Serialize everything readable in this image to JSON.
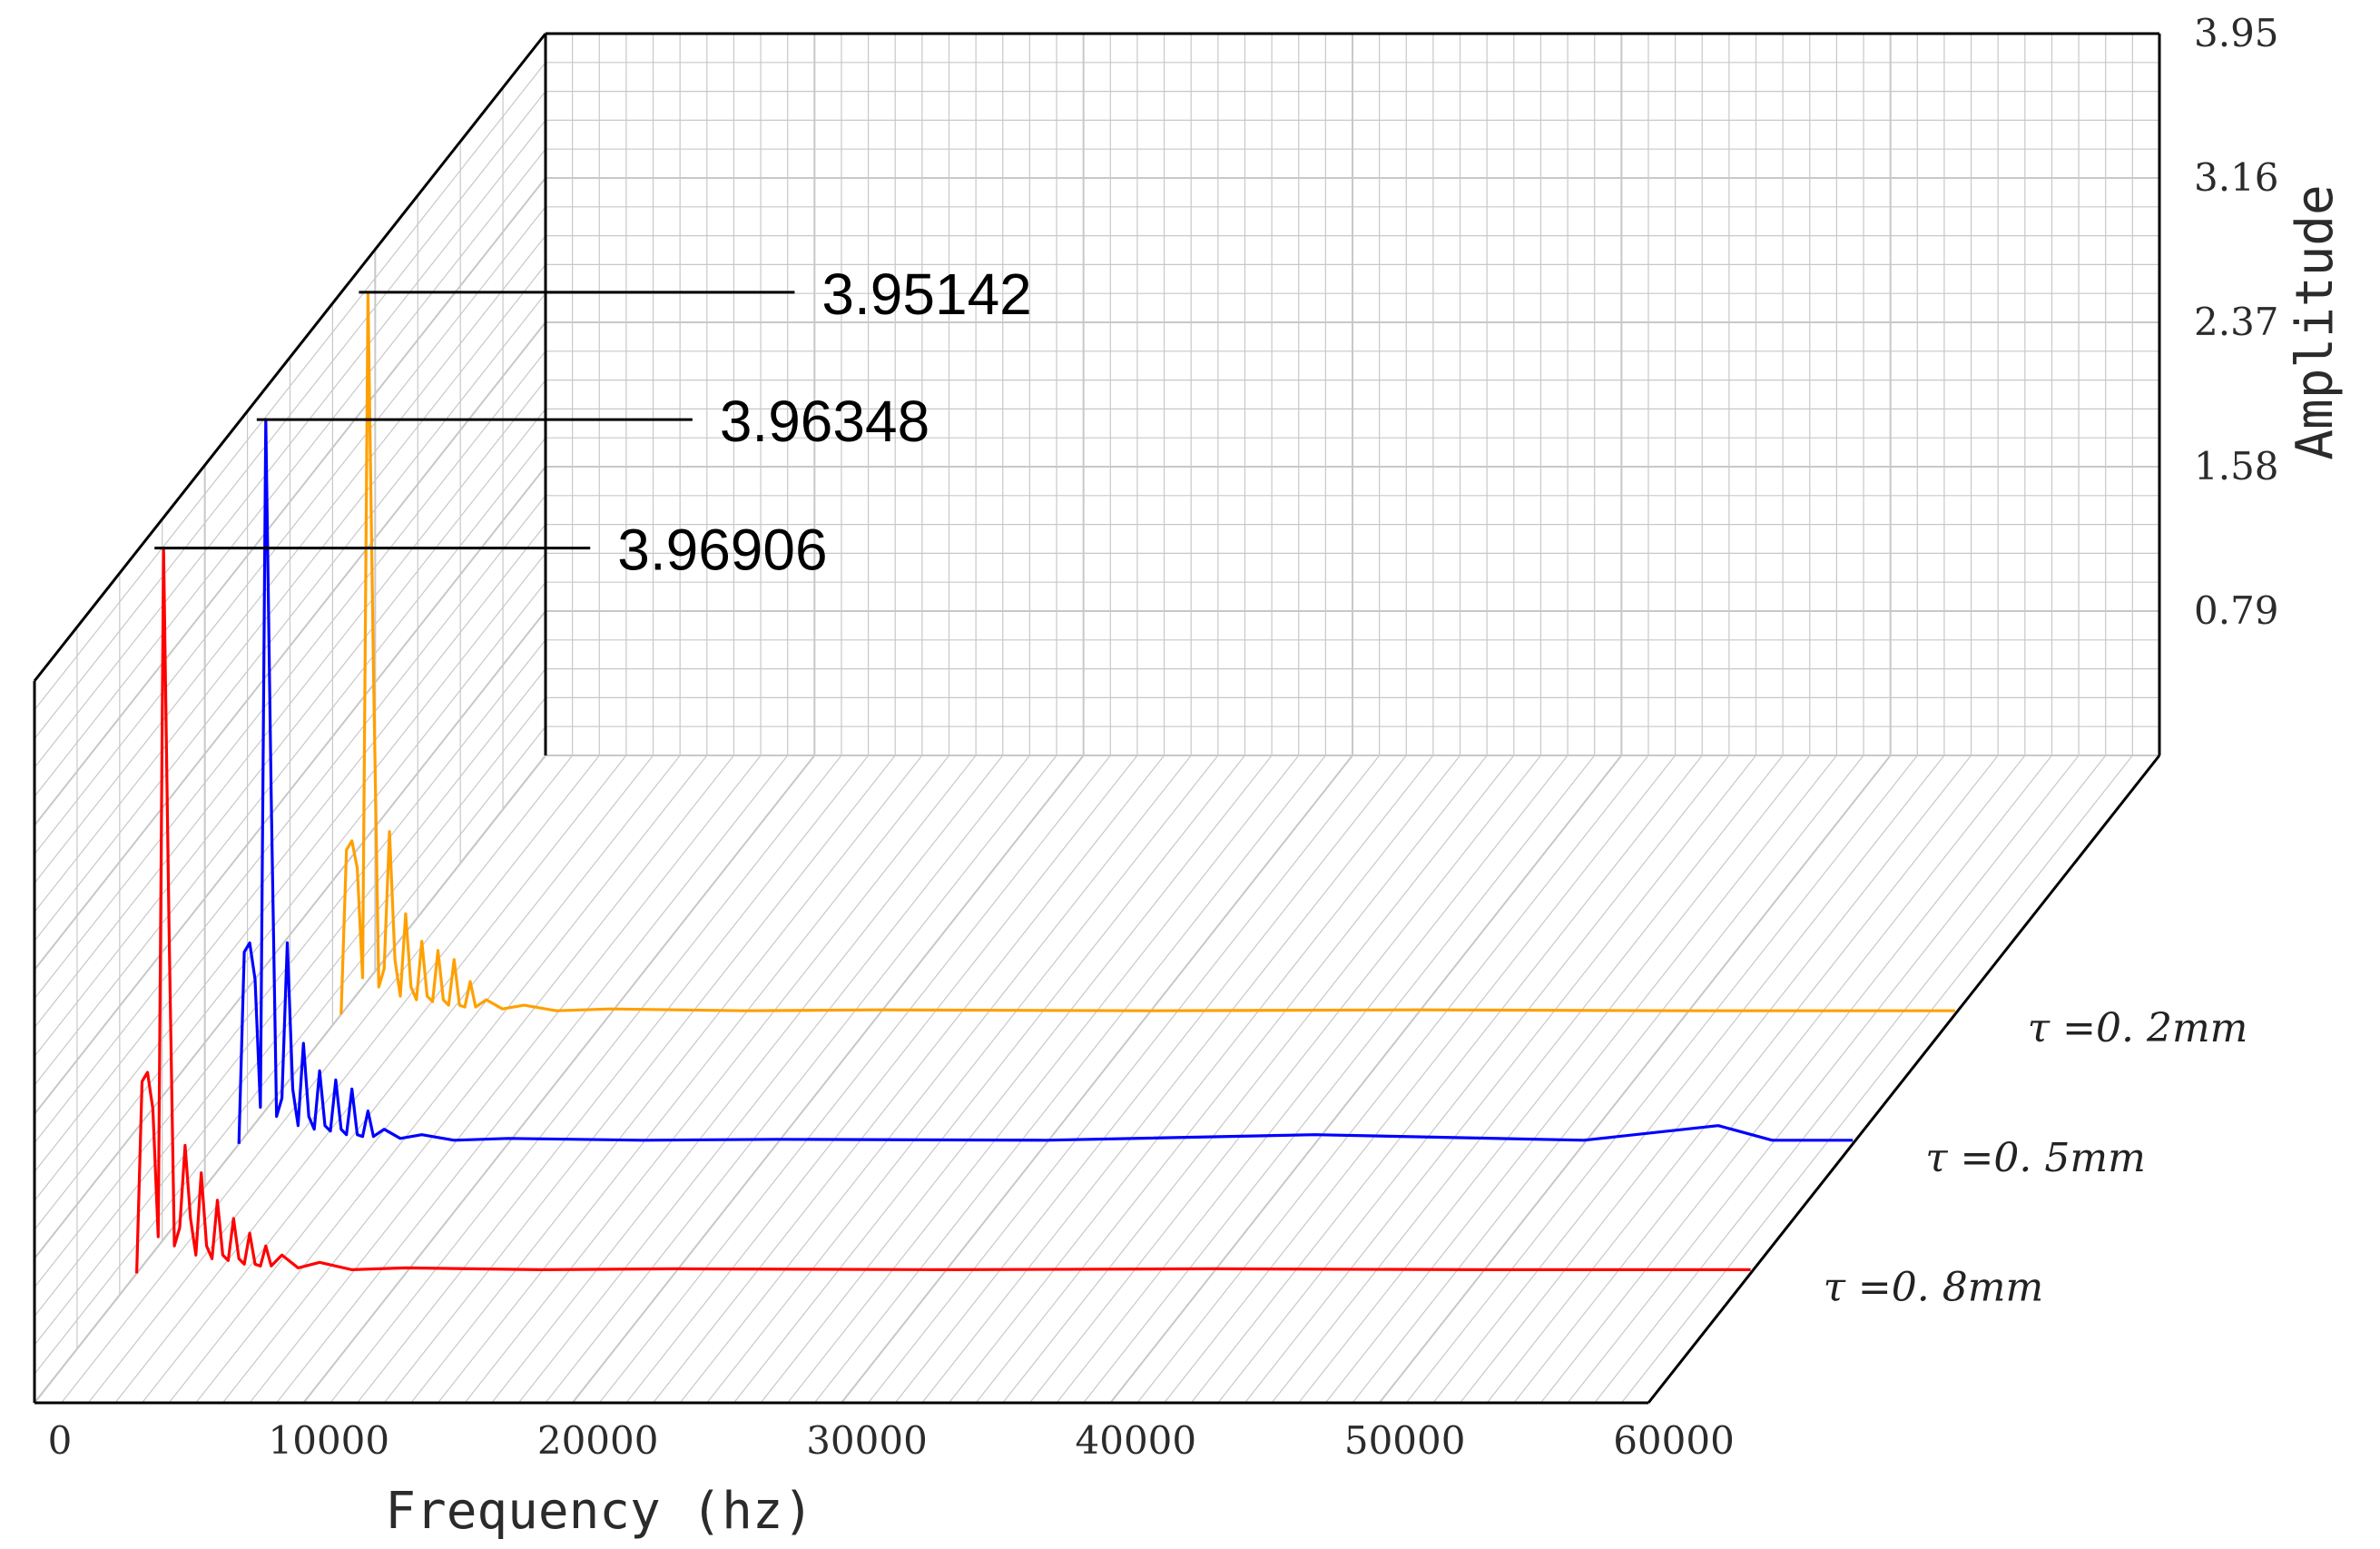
{
  "chart_data": {
    "type": "line",
    "title": "",
    "xlabel": "Frequency (hz)",
    "zlabel": "Amplitude",
    "xlim": [
      0,
      60000
    ],
    "zlim": [
      0,
      3.95
    ],
    "x_ticks": [
      "0",
      "10000",
      "20000",
      "30000",
      "40000",
      "50000",
      "60000"
    ],
    "z_ticks": [
      "0.79",
      "1.58",
      "2.37",
      "3.16",
      "3.95"
    ],
    "grid": true,
    "colors": {
      "tau_0_8": "#ff0000",
      "tau_0_5": "#0000ff",
      "tau_0_2": "#ffa000",
      "grid": "#c8c8c8",
      "frame": "#000000"
    },
    "series": [
      {
        "name": "τ =0. 8mm",
        "color": "#ff0000",
        "peak_label": "3.96906",
        "points": [
          [
            0,
            0
          ],
          [
            200,
            1.05
          ],
          [
            400,
            1.1
          ],
          [
            600,
            0.9
          ],
          [
            800,
            0.2
          ],
          [
            1000,
            3.96906
          ],
          [
            1200,
            1.9
          ],
          [
            1400,
            0.15
          ],
          [
            1600,
            0.25
          ],
          [
            1800,
            0.7
          ],
          [
            2000,
            0.3
          ],
          [
            2200,
            0.1
          ],
          [
            2400,
            0.55
          ],
          [
            2600,
            0.15
          ],
          [
            2800,
            0.08
          ],
          [
            3000,
            0.4
          ],
          [
            3200,
            0.1
          ],
          [
            3400,
            0.07
          ],
          [
            3600,
            0.3
          ],
          [
            3800,
            0.08
          ],
          [
            4000,
            0.05
          ],
          [
            4200,
            0.22
          ],
          [
            4400,
            0.05
          ],
          [
            4600,
            0.04
          ],
          [
            4800,
            0.15
          ],
          [
            5000,
            0.04
          ],
          [
            5400,
            0.1
          ],
          [
            6000,
            0.03
          ],
          [
            6800,
            0.06
          ],
          [
            8000,
            0.02
          ],
          [
            10000,
            0.03
          ],
          [
            15000,
            0.02
          ],
          [
            20000,
            0.025
          ],
          [
            30000,
            0.02
          ],
          [
            40000,
            0.025
          ],
          [
            50000,
            0.02
          ],
          [
            60000,
            0.02
          ]
        ]
      },
      {
        "name": "τ =0. 5mm",
        "color": "#0000ff",
        "peak_label": "3.96348",
        "points": [
          [
            0,
            0
          ],
          [
            200,
            1.05
          ],
          [
            400,
            1.1
          ],
          [
            600,
            0.9
          ],
          [
            800,
            0.2
          ],
          [
            1000,
            3.96348
          ],
          [
            1200,
            1.9
          ],
          [
            1400,
            0.15
          ],
          [
            1600,
            0.25
          ],
          [
            1800,
            1.1
          ],
          [
            2000,
            0.3
          ],
          [
            2200,
            0.1
          ],
          [
            2400,
            0.55
          ],
          [
            2600,
            0.15
          ],
          [
            2800,
            0.08
          ],
          [
            3000,
            0.4
          ],
          [
            3200,
            0.1
          ],
          [
            3400,
            0.07
          ],
          [
            3600,
            0.35
          ],
          [
            3800,
            0.08
          ],
          [
            4000,
            0.05
          ],
          [
            4200,
            0.3
          ],
          [
            4400,
            0.05
          ],
          [
            4600,
            0.04
          ],
          [
            4800,
            0.18
          ],
          [
            5000,
            0.04
          ],
          [
            5400,
            0.08
          ],
          [
            6000,
            0.03
          ],
          [
            6800,
            0.05
          ],
          [
            8000,
            0.02
          ],
          [
            10000,
            0.03
          ],
          [
            15000,
            0.02
          ],
          [
            20000,
            0.025
          ],
          [
            30000,
            0.02
          ],
          [
            40000,
            0.05
          ],
          [
            50000,
            0.02
          ],
          [
            55000,
            0.1
          ],
          [
            57000,
            0.02
          ],
          [
            60000,
            0.02
          ]
        ]
      },
      {
        "name": "τ =0. 2mm",
        "color": "#ffa000",
        "peak_label": "3.95142",
        "points": [
          [
            0,
            0
          ],
          [
            200,
            0.9
          ],
          [
            400,
            0.95
          ],
          [
            600,
            0.8
          ],
          [
            800,
            0.2
          ],
          [
            1000,
            3.95142
          ],
          [
            1200,
            1.9
          ],
          [
            1400,
            0.15
          ],
          [
            1600,
            0.25
          ],
          [
            1800,
            1.0
          ],
          [
            2000,
            0.3
          ],
          [
            2200,
            0.1
          ],
          [
            2400,
            0.55
          ],
          [
            2600,
            0.15
          ],
          [
            2800,
            0.08
          ],
          [
            3000,
            0.4
          ],
          [
            3200,
            0.1
          ],
          [
            3400,
            0.07
          ],
          [
            3600,
            0.35
          ],
          [
            3800,
            0.08
          ],
          [
            4000,
            0.05
          ],
          [
            4200,
            0.3
          ],
          [
            4400,
            0.05
          ],
          [
            4600,
            0.04
          ],
          [
            4800,
            0.18
          ],
          [
            5000,
            0.04
          ],
          [
            5400,
            0.08
          ],
          [
            6000,
            0.03
          ],
          [
            6800,
            0.05
          ],
          [
            8000,
            0.02
          ],
          [
            10000,
            0.03
          ],
          [
            15000,
            0.02
          ],
          [
            20000,
            0.025
          ],
          [
            30000,
            0.02
          ],
          [
            40000,
            0.025
          ],
          [
            50000,
            0.02
          ],
          [
            60000,
            0.02
          ]
        ]
      }
    ]
  }
}
